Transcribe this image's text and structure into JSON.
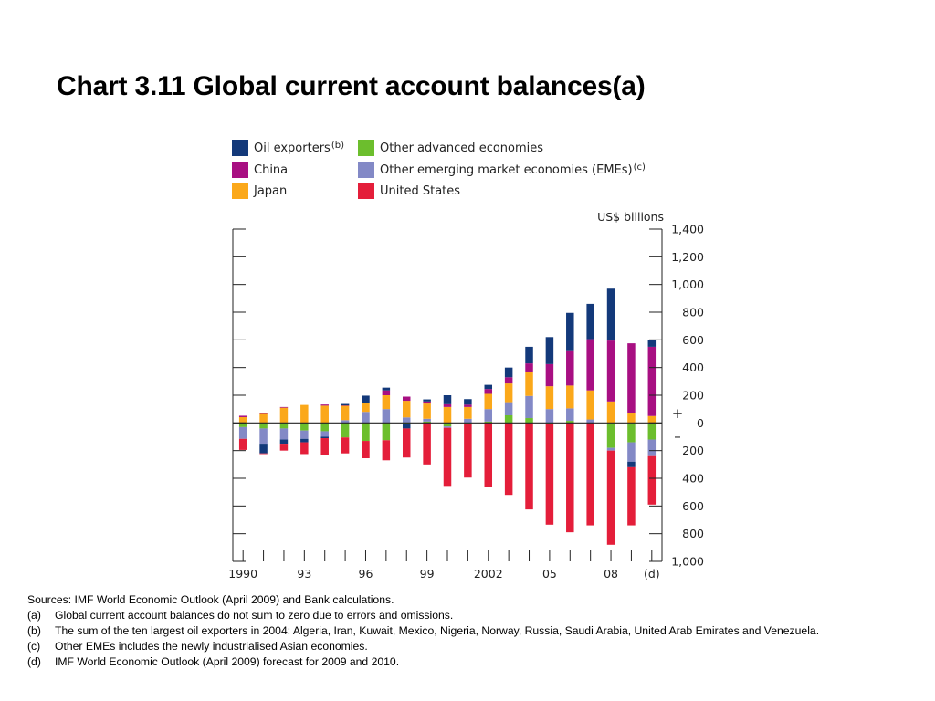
{
  "title": "Chart 3.11 Global current account balances(a)",
  "chart_data": {
    "type": "bar",
    "stacked": true,
    "ylabel": "US$ billions",
    "ylim": [
      -1000,
      1400
    ],
    "y_ticks": [
      1400,
      1200,
      1000,
      800,
      600,
      400,
      200,
      0,
      -200,
      -400,
      -600,
      -800,
      -1000
    ],
    "y_tick_labels": [
      "1,400",
      "1,200",
      "1,000",
      "800",
      "600",
      "400",
      "200",
      "0",
      "200",
      "400",
      "600",
      "800",
      "1,000"
    ],
    "sign_plus": "+",
    "sign_minus": "–",
    "x": [
      1990,
      1991,
      1992,
      1993,
      1994,
      1995,
      1996,
      1997,
      1998,
      1999,
      2000,
      2001,
      2002,
      2003,
      2004,
      2005,
      2006,
      2007,
      2008,
      2009,
      2010
    ],
    "x_tick_labels": [
      {
        "x": 1990,
        "label": "1990"
      },
      {
        "x": 1993,
        "label": "93"
      },
      {
        "x": 1996,
        "label": "96"
      },
      {
        "x": 1999,
        "label": "99"
      },
      {
        "x": 2002,
        "label": "2002"
      },
      {
        "x": 2005,
        "label": "05"
      },
      {
        "x": 2008,
        "label": "08"
      },
      {
        "x": 2010,
        "label": "(d)"
      }
    ],
    "series": [
      {
        "name": "Oil exporters",
        "sup": "(b)",
        "color": "#13397a",
        "values": [
          0,
          -70,
          -30,
          -25,
          -10,
          10,
          50,
          20,
          -30,
          15,
          65,
          40,
          30,
          70,
          120,
          195,
          270,
          255,
          375,
          -40,
          50
        ]
      },
      {
        "name": "China",
        "sup": "",
        "color": "#a80f82",
        "values": [
          10,
          5,
          5,
          0,
          8,
          2,
          2,
          35,
          30,
          15,
          20,
          17,
          35,
          45,
          65,
          160,
          255,
          370,
          440,
          505,
          500
        ]
      },
      {
        "name": "Japan",
        "sup": "",
        "color": "#fba81a",
        "values": [
          42,
          65,
          110,
          130,
          125,
          105,
          65,
          100,
          120,
          110,
          115,
          85,
          110,
          135,
          170,
          165,
          165,
          210,
          155,
          70,
          50
        ]
      },
      {
        "name": "Other advanced economies",
        "sup": "",
        "color": "#6cbe2d",
        "values": [
          -30,
          -40,
          -40,
          -55,
          -60,
          -105,
          -130,
          -125,
          -10,
          10,
          -25,
          -5,
          10,
          55,
          35,
          -5,
          15,
          0,
          -180,
          -140,
          -120
        ]
      },
      {
        "name": "Other emerging market economies (EMEs)",
        "sup": "(c)",
        "color": "#8389c6",
        "values": [
          -85,
          -110,
          -80,
          -60,
          -40,
          20,
          80,
          100,
          40,
          20,
          -10,
          30,
          90,
          95,
          160,
          100,
          90,
          25,
          -20,
          -140,
          -120
        ]
      },
      {
        "name": "United States",
        "sup": "",
        "color": "#e41e3a",
        "values": [
          -80,
          -5,
          -50,
          -85,
          -120,
          -115,
          -125,
          -145,
          -210,
          -300,
          -420,
          -390,
          -460,
          -520,
          -625,
          -730,
          -790,
          -740,
          -680,
          -420,
          -350
        ]
      }
    ]
  },
  "notes": [
    {
      "mark": "",
      "text": "Sources:  IMF World Economic Outlook (April 2009) and Bank calculations."
    },
    {
      "mark": "(a)",
      "text": "Global current account balances do not sum to zero due to errors and omissions."
    },
    {
      "mark": "(b)",
      "text": "The sum of the ten largest oil exporters in 2004:  Algeria, Iran, Kuwait, Mexico, Nigeria, Norway, Russia, Saudi Arabia, United Arab Emirates and Venezuela."
    },
    {
      "mark": "(c)",
      "text": "Other EMEs includes the newly industrialised Asian economies."
    },
    {
      "mark": "(d)",
      "text": "IMF World Economic Outlook (April 2009) forecast for 2009 and 2010."
    }
  ]
}
